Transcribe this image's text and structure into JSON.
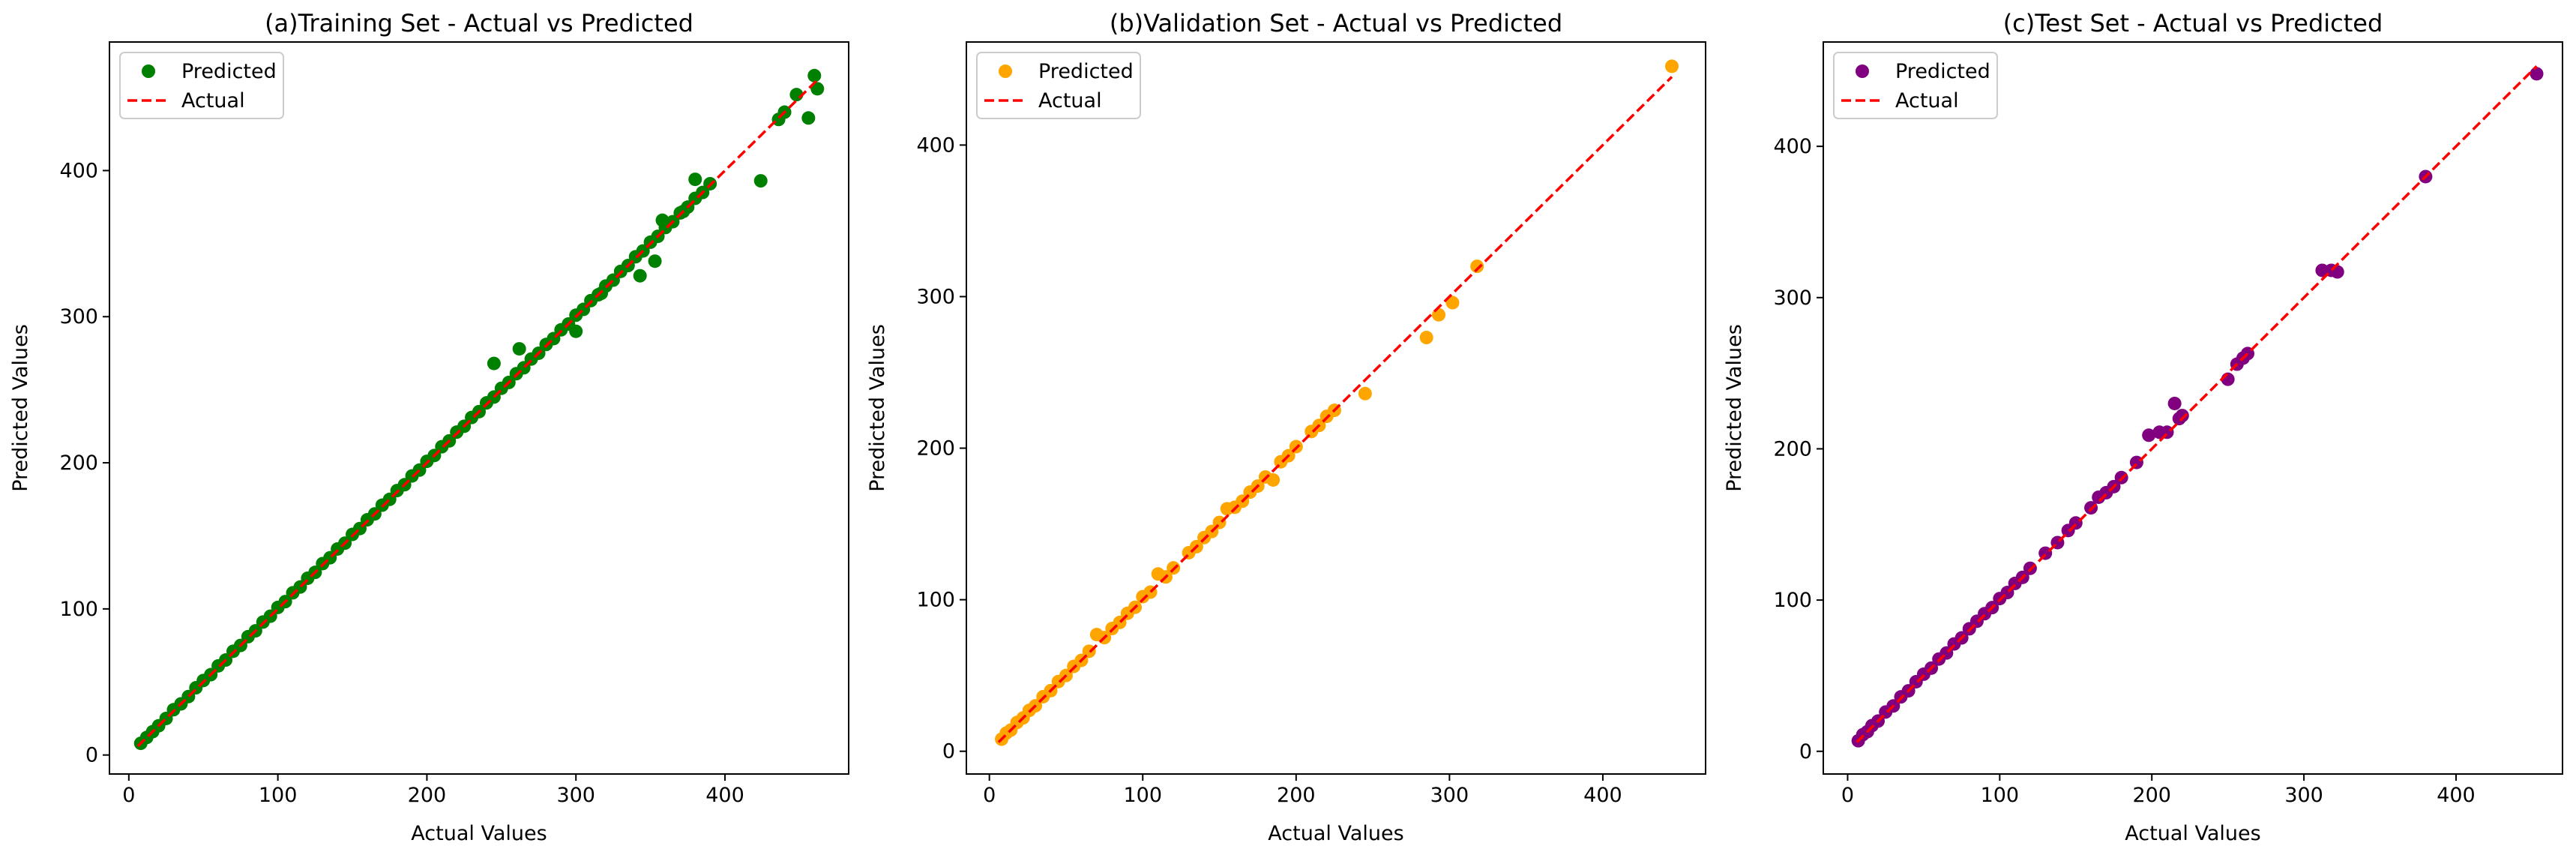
{
  "chart_data": [
    {
      "type": "scatter",
      "title": "(a)Training Set - Actual vs Predicted",
      "xlabel": "Actual Values",
      "ylabel": "Predicted Values",
      "xlim": [
        -13,
        483
      ],
      "ylim": [
        -13,
        488
      ],
      "xticks": [
        0,
        100,
        200,
        300,
        400
      ],
      "yticks": [
        0,
        100,
        200,
        300,
        400
      ],
      "legend": {
        "position": "top-left",
        "entries": [
          "Predicted",
          "Actual"
        ]
      },
      "grid": false,
      "colors": {
        "points": "#008000",
        "line": "#ff0000"
      },
      "series": [
        {
          "name": "Predicted",
          "kind": "points",
          "x": [
            8,
            12,
            16,
            20,
            25,
            30,
            35,
            40,
            45,
            50,
            55,
            60,
            65,
            70,
            75,
            80,
            85,
            90,
            95,
            100,
            105,
            110,
            115,
            120,
            125,
            130,
            135,
            140,
            145,
            150,
            155,
            160,
            165,
            170,
            175,
            180,
            185,
            190,
            195,
            200,
            205,
            210,
            215,
            220,
            225,
            230,
            235,
            240,
            245,
            250,
            255,
            260,
            265,
            270,
            275,
            280,
            285,
            290,
            295,
            300,
            305,
            310,
            315,
            320,
            325,
            330,
            335,
            340,
            345,
            350,
            355,
            360,
            365,
            370,
            375,
            380,
            385,
            390,
            245,
            262,
            300,
            317,
            343,
            353,
            358,
            372,
            380,
            424,
            436,
            440,
            448,
            456,
            460,
            462
          ],
          "y": [
            8,
            12,
            16,
            20,
            25,
            31,
            35,
            40,
            46,
            51,
            55,
            61,
            65,
            71,
            75,
            81,
            85,
            91,
            95,
            101,
            105,
            111,
            115,
            121,
            125,
            131,
            135,
            141,
            145,
            151,
            155,
            161,
            165,
            171,
            175,
            181,
            185,
            191,
            195,
            201,
            205,
            211,
            215,
            221,
            225,
            231,
            235,
            241,
            245,
            251,
            255,
            261,
            265,
            271,
            275,
            281,
            285,
            291,
            295,
            301,
            305,
            311,
            315,
            321,
            325,
            331,
            335,
            341,
            345,
            351,
            355,
            361,
            365,
            371,
            375,
            381,
            385,
            391,
            268,
            278,
            290,
            316,
            328,
            338,
            366,
            372,
            394,
            393,
            435,
            440,
            452,
            436,
            465,
            456
          ]
        },
        {
          "name": "Actual",
          "kind": "line",
          "x": [
            6,
            462
          ],
          "y": [
            6,
            462
          ]
        }
      ]
    },
    {
      "type": "scatter",
      "title": "(b)Validation Set - Actual vs Predicted",
      "xlabel": "Actual Values",
      "ylabel": "Predicted Values",
      "xlim": [
        -15,
        467
      ],
      "ylim": [
        -15,
        468
      ],
      "xticks": [
        0,
        100,
        200,
        300,
        400
      ],
      "yticks": [
        0,
        100,
        200,
        300,
        400
      ],
      "legend": {
        "position": "top-left",
        "entries": [
          "Predicted",
          "Actual"
        ]
      },
      "grid": false,
      "colors": {
        "points": "#ffa500",
        "line": "#ff0000"
      },
      "series": [
        {
          "name": "Predicted",
          "kind": "points",
          "x": [
            8,
            11,
            14,
            18,
            22,
            26,
            30,
            35,
            40,
            45,
            50,
            55,
            60,
            65,
            70,
            75,
            80,
            85,
            90,
            95,
            100,
            105,
            110,
            115,
            120,
            130,
            135,
            140,
            145,
            150,
            155,
            160,
            165,
            170,
            175,
            180,
            185,
            190,
            195,
            200,
            210,
            215,
            220,
            225,
            245,
            285,
            293,
            302,
            318,
            445
          ],
          "y": [
            8,
            12,
            14,
            19,
            22,
            27,
            30,
            36,
            40,
            46,
            50,
            56,
            60,
            66,
            77,
            75,
            81,
            85,
            91,
            95,
            102,
            105,
            117,
            115,
            121,
            131,
            135,
            141,
            145,
            151,
            160,
            161,
            165,
            171,
            175,
            181,
            179,
            191,
            195,
            201,
            211,
            215,
            221,
            225,
            236,
            273,
            288,
            296,
            320,
            452
          ]
        },
        {
          "name": "Actual",
          "kind": "line",
          "x": [
            6,
            445
          ],
          "y": [
            6,
            445
          ]
        }
      ]
    },
    {
      "type": "scatter",
      "title": "(c)Test Set - Actual vs Predicted",
      "xlabel": "Actual Values",
      "ylabel": "Predicted Values",
      "xlim": [
        -16,
        470
      ],
      "ylim": [
        -15,
        469
      ],
      "xticks": [
        0,
        100,
        200,
        300,
        400
      ],
      "yticks": [
        0,
        100,
        200,
        300,
        400
      ],
      "legend": {
        "position": "top-left",
        "entries": [
          "Predicted",
          "Actual"
        ]
      },
      "grid": false,
      "colors": {
        "points": "#800080",
        "line": "#ff0000"
      },
      "series": [
        {
          "name": "Predicted",
          "kind": "points",
          "x": [
            7,
            10,
            13,
            16,
            20,
            25,
            30,
            35,
            40,
            45,
            50,
            55,
            60,
            65,
            70,
            75,
            80,
            85,
            90,
            95,
            100,
            105,
            110,
            115,
            120,
            130,
            138,
            145,
            150,
            160,
            165,
            170,
            175,
            180,
            190,
            198,
            205,
            210,
            215,
            218,
            220,
            250,
            256,
            260,
            263,
            312,
            318,
            322,
            380,
            453
          ],
          "y": [
            7,
            11,
            13,
            17,
            20,
            26,
            30,
            36,
            40,
            46,
            51,
            55,
            61,
            65,
            71,
            75,
            81,
            86,
            91,
            95,
            101,
            105,
            111,
            115,
            121,
            131,
            138,
            146,
            151,
            161,
            168,
            171,
            175,
            181,
            191,
            209,
            211,
            211,
            230,
            220,
            222,
            246,
            256,
            260,
            263,
            318,
            318,
            317,
            380,
            448
          ]
        },
        {
          "name": "Actual",
          "kind": "line",
          "x": [
            6,
            453
          ],
          "y": [
            6,
            453
          ]
        }
      ]
    }
  ]
}
